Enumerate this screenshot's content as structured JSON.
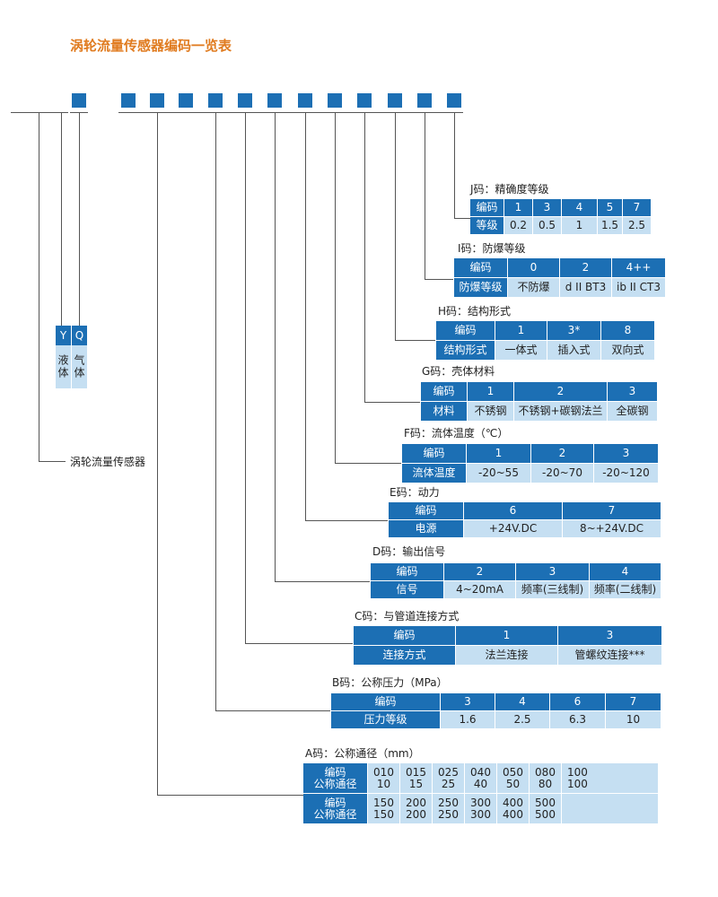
{
  "title": "涡轮流量传感器编码一览表",
  "main_label": "涡轮流量传感器",
  "yq": {
    "codes": [
      "Y",
      "Q"
    ],
    "labels": [
      "液体",
      "气体"
    ]
  },
  "tables": {
    "J": {
      "caption": "J码：精确度等级",
      "row1_head": "编码",
      "row2_head": "等级",
      "codes": [
        "1",
        "3",
        "4",
        "5",
        "7"
      ],
      "values": [
        "0.2",
        "0.5",
        "1",
        "1.5",
        "2.5"
      ]
    },
    "I": {
      "caption": "I码：防爆等级",
      "row1_head": "编码",
      "row2_head": "防爆等级",
      "codes": [
        "0",
        "2",
        "4++"
      ],
      "values": [
        "不防爆",
        "d II BT3",
        "ib II CT3"
      ]
    },
    "H": {
      "caption": "H码：结构形式",
      "row1_head": "编码",
      "row2_head": "结构形式",
      "codes": [
        "1",
        "3*",
        "8"
      ],
      "values": [
        "一体式",
        "插入式",
        "双向式"
      ]
    },
    "G": {
      "caption": "G码：壳体材料",
      "row1_head": "编码",
      "row2_head": "材料",
      "codes": [
        "1",
        "2",
        "3"
      ],
      "values": [
        "不锈钢",
        "不锈钢+碳钢法兰",
        "全碳钢"
      ]
    },
    "F": {
      "caption": "F码：流体温度（℃）",
      "row1_head": "编码",
      "row2_head": "流体温度",
      "codes": [
        "1",
        "2",
        "3"
      ],
      "values": [
        "-20~55",
        "-20~70",
        "-20~120"
      ]
    },
    "E": {
      "caption": "E码：动力",
      "row1_head": "编码",
      "row2_head": "电源",
      "codes": [
        "6",
        "7"
      ],
      "values": [
        "+24V.DC",
        "8~+24V.DC"
      ]
    },
    "D": {
      "caption": "D码：输出信号",
      "row1_head": "编码",
      "row2_head": "信号",
      "codes": [
        "2",
        "3",
        "4"
      ],
      "values": [
        "4~20mA",
        "频率(三线制)",
        "频率(二线制)"
      ]
    },
    "C": {
      "caption": "C码：与管道连接方式",
      "row1_head": "编码",
      "row2_head": "连接方式",
      "codes": [
        "1",
        "3"
      ],
      "values": [
        "法兰连接",
        "管螺纹连接***"
      ]
    },
    "B": {
      "caption": "B码：公称压力（MPa）",
      "row1_head": "编码",
      "row2_head": "压力等级",
      "codes": [
        "3",
        "4",
        "6",
        "7"
      ],
      "values": [
        "1.6",
        "2.5",
        "6.3",
        "10"
      ]
    }
  },
  "A": {
    "caption": "A码：公称通径（mm）",
    "head_line1": "编码",
    "head_line2": "公称通径",
    "row1_codes": [
      "010",
      "015",
      "025",
      "040",
      "050",
      "080",
      "100"
    ],
    "row1_dn": [
      "10",
      "15",
      "25",
      "40",
      "50",
      "80",
      "100"
    ],
    "row2_codes": [
      "150",
      "200",
      "250",
      "300",
      "400",
      "500",
      ""
    ],
    "row2_dn": [
      "150",
      "200",
      "250",
      "300",
      "400",
      "500",
      ""
    ]
  },
  "colors": {
    "header_blue": "#1c6fb4",
    "cell_light_blue": "#c5dff2",
    "title_orange": "#e07b1f"
  }
}
